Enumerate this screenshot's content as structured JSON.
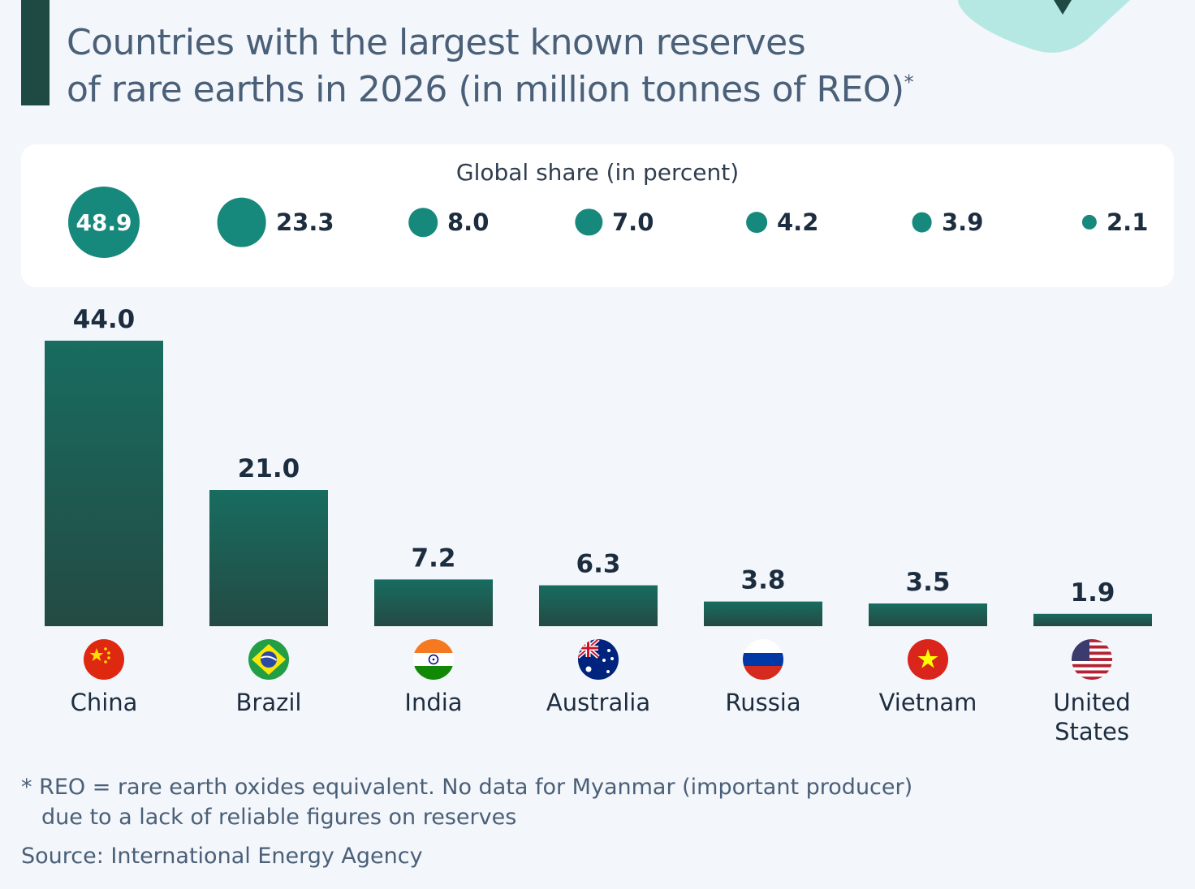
{
  "title": {
    "line1": "Countries with the largest known reserves",
    "line2": "of rare earths in 2026 (in million tonnes of REO)",
    "asterisk": "*"
  },
  "share": {
    "heading": "Global share (in percent)",
    "values": [
      "48.9",
      "23.3",
      "8.0",
      "7.0",
      "4.2",
      "3.9",
      "2.1"
    ]
  },
  "chart_data": {
    "type": "bar",
    "title": "Countries with the largest known reserves of rare earths in 2026 (in million tonnes of REO)*",
    "categories": [
      "China",
      "Brazil",
      "India",
      "Australia",
      "Russia",
      "Vietnam",
      "United States"
    ],
    "values": [
      44.0,
      21.0,
      7.2,
      6.3,
      3.8,
      3.5,
      1.9
    ],
    "value_labels": [
      "44.0",
      "21.0",
      "7.2",
      "6.3",
      "3.8",
      "3.5",
      "1.9"
    ],
    "global_share_percent": [
      48.9,
      23.3,
      8.0,
      7.0,
      4.2,
      3.9,
      2.1
    ],
    "xlabel": "",
    "ylabel": "",
    "grid": false,
    "colors": {
      "bar_top": "#186c60",
      "bar_bottom": "#234a43",
      "share_circle": "#16897c"
    }
  },
  "countries": {
    "china": "China",
    "brazil": "Brazil",
    "india": "India",
    "australia": "Australia",
    "russia": "Russia",
    "vietnam": "Vietnam",
    "us_line1": "United",
    "us_line2": "States"
  },
  "flags": [
    "china-flag-icon",
    "brazil-flag-icon",
    "india-flag-icon",
    "australia-flag-icon",
    "russia-flag-icon",
    "vietnam-flag-icon",
    "usa-flag-icon"
  ],
  "footnote": {
    "line1": "* REO = rare earth oxides equivalent. No data for Myanmar (important producer)",
    "line2": "due to a lack of reliable figures on reserves"
  },
  "source": "Source: International Energy Agency"
}
